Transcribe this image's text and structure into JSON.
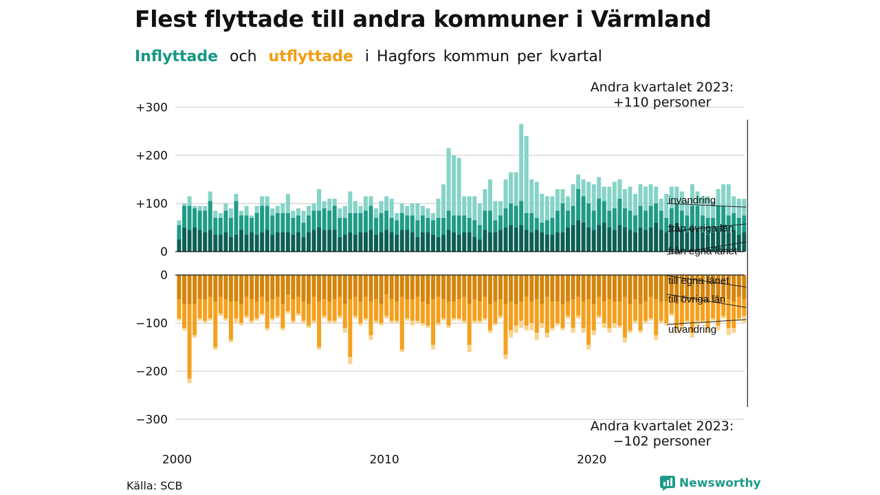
{
  "title": "Flest flyttade till andra kommuner i Värmland",
  "subtitle": {
    "in_word": "Inflyttade",
    "and_word": "och",
    "out_word": "utflyttade",
    "rest": "i Hagfors kommun per kvartal"
  },
  "source": "Källa: SCB",
  "brand": "Newsworthy",
  "colors": {
    "in_egna": "#0c5f54",
    "in_ovriga": "#1f9b87",
    "in_invandring": "#86d3c7",
    "out_egna": "#d5850b",
    "out_ovriga": "#f5a01d",
    "out_utvandring": "#f9d38f",
    "grid": "#d9d9d9",
    "brand": "#1c9b87"
  },
  "chart_data": {
    "type": "bar",
    "stacked": true,
    "x_start": 2000.0,
    "x_step": 0.25,
    "ylim": [
      -300,
      300
    ],
    "yticks": [
      {
        "value": 300,
        "label": "+300"
      },
      {
        "value": 200,
        "label": "+200"
      },
      {
        "value": 100,
        "label": "+100"
      },
      {
        "value": 0,
        "label": "0"
      },
      {
        "value": -100,
        "label": "−100"
      },
      {
        "value": -200,
        "label": "−200"
      },
      {
        "value": -300,
        "label": "−300"
      }
    ],
    "xticks": [
      2000,
      2010,
      2020
    ],
    "grid": true,
    "series": [
      {
        "name": "från egna länet",
        "group": "in",
        "values": [
          25,
          50,
          45,
          50,
          45,
          40,
          45,
          35,
          35,
          40,
          30,
          35,
          45,
          35,
          40,
          35,
          40,
          45,
          35,
          40,
          40,
          40,
          35,
          40,
          30,
          40,
          45,
          50,
          45,
          45,
          45,
          30,
          35,
          40,
          35,
          40,
          40,
          45,
          35,
          40,
          45,
          40,
          35,
          45,
          45,
          40,
          30,
          40,
          40,
          35,
          30,
          35,
          45,
          40,
          35,
          40,
          40,
          30,
          25,
          45,
          40,
          40,
          45,
          50,
          55,
          50,
          55,
          45,
          40,
          45,
          40,
          35,
          35,
          40,
          40,
          50,
          55,
          65,
          60,
          50,
          45,
          55,
          60,
          50,
          45,
          55,
          50,
          45,
          40,
          50,
          45,
          50,
          60,
          45,
          40,
          55,
          60,
          45,
          40,
          50,
          45,
          40,
          35,
          40,
          50,
          55,
          40,
          45,
          35,
          40
        ]
      },
      {
        "name": "från övriga län",
        "group": "in",
        "values": [
          30,
          45,
          50,
          40,
          40,
          45,
          60,
          35,
          35,
          45,
          40,
          70,
          30,
          40,
          30,
          45,
          55,
          50,
          40,
          40,
          40,
          40,
          35,
          35,
          30,
          35,
          40,
          35,
          45,
          40,
          50,
          40,
          35,
          40,
          45,
          40,
          45,
          50,
          35,
          40,
          40,
          30,
          30,
          35,
          30,
          35,
          35,
          35,
          30,
          30,
          40,
          35,
          40,
          35,
          40,
          35,
          30,
          35,
          30,
          40,
          45,
          25,
          30,
          40,
          45,
          45,
          50,
          35,
          40,
          25,
          20,
          30,
          35,
          45,
          60,
          35,
          40,
          65,
          55,
          50,
          40,
          55,
          45,
          35,
          45,
          55,
          40,
          40,
          35,
          45,
          40,
          45,
          40,
          40,
          30,
          35,
          40,
          40,
          35,
          45,
          50,
          35,
          35,
          30,
          45,
          40,
          35,
          35,
          35,
          35
        ]
      },
      {
        "name": "invandring",
        "group": "in",
        "values": [
          10,
          5,
          20,
          5,
          10,
          10,
          20,
          15,
          10,
          15,
          20,
          15,
          10,
          20,
          5,
          15,
          20,
          20,
          15,
          15,
          20,
          40,
          15,
          15,
          25,
          20,
          15,
          45,
          15,
          25,
          15,
          20,
          25,
          45,
          25,
          15,
          30,
          20,
          20,
          25,
          30,
          40,
          15,
          20,
          20,
          25,
          35,
          20,
          20,
          15,
          40,
          70,
          130,
          125,
          120,
          40,
          45,
          50,
          45,
          45,
          65,
          40,
          30,
          60,
          65,
          70,
          160,
          160,
          70,
          75,
          60,
          50,
          45,
          45,
          30,
          30,
          45,
          30,
          35,
          45,
          55,
          45,
          30,
          50,
          55,
          40,
          40,
          50,
          45,
          45,
          50,
          45,
          35,
          25,
          50,
          45,
          35,
          40,
          30,
          45,
          30,
          40,
          45,
          35,
          35,
          45,
          65,
          35,
          40,
          35
        ]
      },
      {
        "name": "till egna länet",
        "group": "out",
        "values": [
          -50,
          -60,
          -60,
          -60,
          -50,
          -50,
          -45,
          -55,
          -45,
          -50,
          -55,
          -55,
          -60,
          -45,
          -50,
          -55,
          -45,
          -55,
          -50,
          -45,
          -60,
          -40,
          -50,
          -45,
          -55,
          -60,
          -45,
          -55,
          -50,
          -55,
          -50,
          -45,
          -60,
          -50,
          -45,
          -55,
          -45,
          -55,
          -50,
          -60,
          -40,
          -50,
          -55,
          -45,
          -50,
          -50,
          -45,
          -55,
          -60,
          -50,
          -45,
          -50,
          -55,
          -55,
          -50,
          -45,
          -60,
          -50,
          -55,
          -45,
          -60,
          -55,
          -50,
          -60,
          -55,
          -60,
          -55,
          -45,
          -55,
          -50,
          -60,
          -45,
          -55,
          -55,
          -60,
          -55,
          -50,
          -45,
          -55,
          -50,
          -60,
          -45,
          -55,
          -50,
          -55,
          -55,
          -45,
          -60,
          -50,
          -60,
          -55,
          -45,
          -50,
          -55,
          -55,
          -45,
          -60,
          -55,
          -50,
          -55,
          -45,
          -50,
          -55,
          -50,
          -55,
          -45,
          -50,
          -55,
          -45,
          -50
        ]
      },
      {
        "name": "till övriga län",
        "group": "out",
        "values": [
          -40,
          -50,
          -155,
          -65,
          -40,
          -45,
          -45,
          -95,
          -35,
          -40,
          -80,
          -35,
          -40,
          -40,
          -45,
          -35,
          -35,
          -55,
          -40,
          -40,
          -50,
          -35,
          -45,
          -35,
          -40,
          -45,
          -50,
          -95,
          -35,
          -40,
          -45,
          -40,
          -50,
          -120,
          -40,
          -45,
          -45,
          -70,
          -45,
          -40,
          -45,
          -45,
          -40,
          -110,
          -40,
          -45,
          -50,
          -45,
          -45,
          -95,
          -55,
          -40,
          -50,
          -35,
          -40,
          -50,
          -85,
          -45,
          -40,
          -45,
          -55,
          -45,
          -35,
          -105,
          -60,
          -45,
          -40,
          -60,
          -45,
          -70,
          -40,
          -75,
          -55,
          -45,
          -50,
          -30,
          -60,
          -40,
          -55,
          -95,
          -55,
          -40,
          -45,
          -60,
          -45,
          -50,
          -85,
          -55,
          -45,
          -55,
          -40,
          -45,
          -75,
          -40,
          -45,
          -35,
          -50,
          -50,
          -45,
          -65,
          -50,
          -45,
          -55,
          -40,
          -50,
          -40,
          -60,
          -55,
          -45,
          -35
        ]
      },
      {
        "name": "utvandring",
        "group": "out",
        "values": [
          -5,
          -5,
          -10,
          -5,
          -5,
          -5,
          -5,
          -5,
          -5,
          -5,
          -5,
          -10,
          -5,
          -5,
          -5,
          -5,
          -5,
          -5,
          -5,
          -5,
          -5,
          -5,
          -5,
          -5,
          -5,
          -5,
          -5,
          -5,
          -5,
          -5,
          -5,
          -5,
          -10,
          -15,
          -5,
          -5,
          -5,
          -10,
          -5,
          -5,
          -5,
          -5,
          -5,
          -5,
          -5,
          -10,
          -5,
          -5,
          -5,
          -10,
          -5,
          -5,
          -5,
          -5,
          -5,
          -5,
          -15,
          -5,
          -5,
          -5,
          -5,
          -5,
          -5,
          -10,
          -15,
          -15,
          -15,
          -10,
          -15,
          -15,
          -10,
          -10,
          -5,
          -5,
          -5,
          -5,
          -10,
          -5,
          -10,
          -10,
          -10,
          -5,
          -10,
          -10,
          -10,
          -5,
          -10,
          -5,
          -5,
          -5,
          -5,
          -5,
          -10,
          -5,
          -5,
          -5,
          -10,
          -10,
          -5,
          -10,
          -10,
          -5,
          -10,
          -5,
          -10,
          -5,
          -15,
          -10,
          -5,
          -15
        ]
      }
    ],
    "annotations": [
      {
        "label": "Andra kvartalet 2023:",
        "value_label": "+110 personer",
        "group": "in"
      },
      {
        "label": "Andra kvartalet 2023:",
        "value_label": "−102 personer",
        "group": "out"
      }
    ]
  }
}
